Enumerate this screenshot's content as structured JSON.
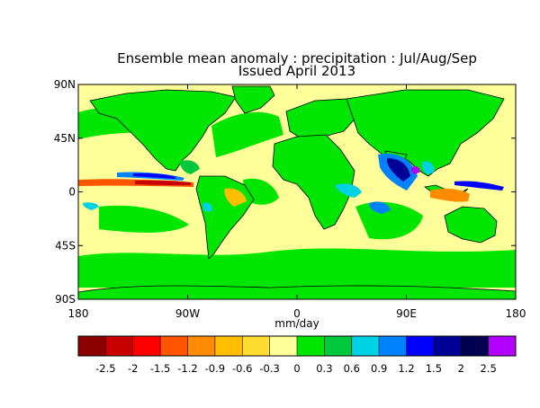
{
  "title": {
    "line1": "Ensemble mean anomaly : precipitation : Jul/Aug/Sep",
    "line2": "Issued April 2013"
  },
  "map": {
    "y_ticks": [
      "90N",
      "45N",
      "0",
      "45S",
      "90S"
    ],
    "x_ticks": [
      "180",
      "90W",
      "0",
      "90E",
      "180"
    ],
    "x_range": [
      -180,
      180
    ],
    "y_range": [
      -90,
      90
    ],
    "units": "mm/day",
    "ocean_neutral_color": "#ffff99",
    "land_color": "#00e600",
    "ice_color": "#ffff99"
  },
  "colorbar": {
    "colors": [
      "#8c0000",
      "#c80000",
      "#ff0000",
      "#ff5500",
      "#ff8c00",
      "#ffbe00",
      "#ffdd30",
      "#ffff99",
      "#00e600",
      "#00c83c",
      "#00d2e6",
      "#0082ff",
      "#0000ff",
      "#000096",
      "#000050",
      "#b400ff"
    ],
    "labels": [
      "-2.5",
      "-2",
      "-1.5",
      "-1.2",
      "-0.9",
      "-0.6",
      "-0.3",
      "0",
      "0.3",
      "0.6",
      "0.9",
      "1.2",
      "1.5",
      "2",
      "2.5"
    ]
  }
}
